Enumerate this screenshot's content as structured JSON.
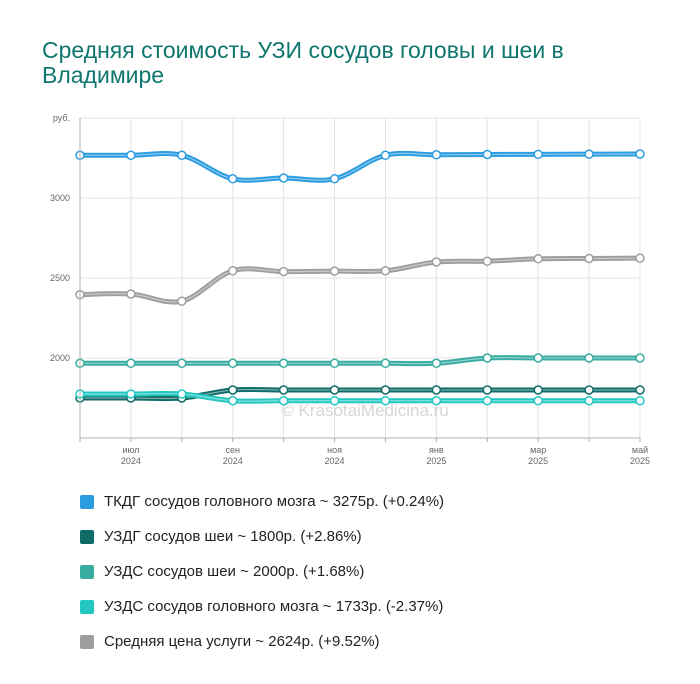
{
  "title": "Средняя стоимость УЗИ сосудов головы и шеи в Владимире",
  "watermark": "© KrasotaiMedicina.ru",
  "chart_data": {
    "type": "line",
    "title": "Средняя стоимость УЗИ сосудов головы и шеи в Владимире",
    "yunit": "руб.",
    "ylim": [
      1500,
      3500
    ],
    "yticks": [
      {
        "v": 2000,
        "label": "2000"
      },
      {
        "v": 2500,
        "label": "2500"
      },
      {
        "v": 3000,
        "label": "3000"
      }
    ],
    "x_points": [
      "2024-06",
      "2024-07",
      "2024-08",
      "2024-09",
      "2024-10",
      "2024-11",
      "2024-12",
      "2025-01",
      "2025-02",
      "2025-03",
      "2025-04",
      "2025-05"
    ],
    "x_labels": [
      {
        "i": 1,
        "month": "июл",
        "year": "2024"
      },
      {
        "i": 3,
        "month": "сен",
        "year": "2024"
      },
      {
        "i": 5,
        "month": "ноя",
        "year": "2024"
      },
      {
        "i": 7,
        "month": "янв",
        "year": "2025"
      },
      {
        "i": 9,
        "month": "мар",
        "year": "2025"
      },
      {
        "i": 11,
        "month": "май",
        "year": "2025"
      }
    ],
    "grid": true,
    "legend_position": "bottom",
    "series": [
      {
        "name": "Средняя цена услуги",
        "color": "#9e9e9e",
        "values": [
          2396,
          2400,
          2355,
          2545,
          2540,
          2543,
          2545,
          2600,
          2605,
          2620,
          2622,
          2624
        ]
      },
      {
        "name": "УЗДС сосудов шеи",
        "color": "#38aca0",
        "values": [
          1967,
          1967,
          1967,
          1967,
          1967,
          1967,
          1967,
          1967,
          2000,
          2000,
          2000,
          2000
        ]
      },
      {
        "name": "УЗДГ сосудов шеи",
        "color": "#0e6b66",
        "values": [
          1750,
          1750,
          1750,
          1800,
          1800,
          1800,
          1800,
          1800,
          1800,
          1800,
          1800,
          1800
        ]
      },
      {
        "name": "УЗДС сосудов головного мозга",
        "color": "#22c7c1",
        "values": [
          1775,
          1775,
          1775,
          1733,
          1733,
          1733,
          1733,
          1733,
          1733,
          1733,
          1733,
          1733
        ]
      },
      {
        "name": "ТКДГ сосудов головного мозга",
        "color": "#2b9ce0",
        "values": [
          3267,
          3267,
          3267,
          3120,
          3125,
          3120,
          3267,
          3270,
          3272,
          3273,
          3274,
          3275
        ]
      }
    ]
  },
  "legend": [
    {
      "text": "ТКДГ сосудов головного мозга ~ 3275р. (+0.24%)",
      "color": "#2b9ce0"
    },
    {
      "text": "УЗДГ сосудов шеи ~ 1800р. (+2.86%)",
      "color": "#0e6b66"
    },
    {
      "text": "УЗДС сосудов шеи ~ 2000р. (+1.68%)",
      "color": "#38aca0"
    },
    {
      "text": "УЗДС сосудов головного мозга ~ 1733р. (-2.37%)",
      "color": "#22c7c1"
    },
    {
      "text": "Средняя цена услуги ~ 2624р. (+9.52%)",
      "color": "#9e9e9e"
    }
  ]
}
